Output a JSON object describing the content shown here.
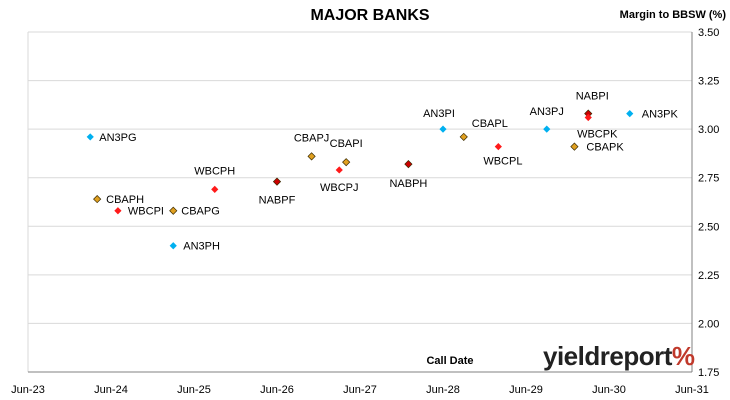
{
  "chart_data": {
    "type": "scatter",
    "title": "MAJOR BANKS",
    "ylabel": "Margin to BBSW (%)",
    "xlabel": "Call Date",
    "ylim": [
      1.75,
      3.5
    ],
    "yticks": [
      "1.75",
      "2.00",
      "2.25",
      "2.50",
      "2.75",
      "3.00",
      "3.25",
      "3.50"
    ],
    "xticks": [
      "Jun-23",
      "Jun-24",
      "Jun-25",
      "Jun-26",
      "Jun-27",
      "Jun-28",
      "Jun-29",
      "Jun-30",
      "Jun-31"
    ],
    "xlim": [
      "2023-06",
      "2031-06"
    ],
    "grid": "horizontal",
    "points": [
      {
        "label": "AN3PG",
        "x": "2024-03",
        "y": 2.96,
        "bank": "ANZ"
      },
      {
        "label": "CBAPH",
        "x": "2024-04",
        "y": 2.64,
        "bank": "CBA"
      },
      {
        "label": "WBCPI",
        "x": "2024-07",
        "y": 2.58,
        "bank": "WBC"
      },
      {
        "label": "CBAPG",
        "x": "2025-03",
        "y": 2.58,
        "bank": "CBA"
      },
      {
        "label": "AN3PH",
        "x": "2025-03",
        "y": 2.4,
        "bank": "ANZ"
      },
      {
        "label": "WBCPH",
        "x": "2025-09",
        "y": 2.69,
        "bank": "WBC"
      },
      {
        "label": "NABPF",
        "x": "2026-06",
        "y": 2.73,
        "bank": "NAB"
      },
      {
        "label": "CBAPJ",
        "x": "2026-11",
        "y": 2.86,
        "bank": "CBA"
      },
      {
        "label": "WBCPJ",
        "x": "2027-03",
        "y": 2.79,
        "bank": "WBC"
      },
      {
        "label": "CBAPI",
        "x": "2027-04",
        "y": 2.83,
        "bank": "CBA"
      },
      {
        "label": "NABPH",
        "x": "2028-01",
        "y": 2.82,
        "bank": "NAB"
      },
      {
        "label": "AN3PI",
        "x": "2028-06",
        "y": 3.0,
        "bank": "ANZ"
      },
      {
        "label": "CBAPL",
        "x": "2028-09",
        "y": 2.96,
        "bank": "CBA"
      },
      {
        "label": "WBCPL",
        "x": "2029-02",
        "y": 2.91,
        "bank": "WBC"
      },
      {
        "label": "AN3PJ",
        "x": "2029-09",
        "y": 3.0,
        "bank": "ANZ"
      },
      {
        "label": "CBAPK",
        "x": "2030-01",
        "y": 2.91,
        "bank": "CBA"
      },
      {
        "label": "NABPI",
        "x": "2030-03",
        "y": 3.08,
        "bank": "NAB"
      },
      {
        "label": "WBCPK",
        "x": "2030-03",
        "y": 3.06,
        "bank": "WBC"
      },
      {
        "label": "AN3PK",
        "x": "2030-09",
        "y": 3.08,
        "bank": "ANZ"
      }
    ]
  },
  "colors": {
    "ANZ": "#00b0f0",
    "CBA": "#e0a020",
    "WBC": "#ff1a1a",
    "NAB": "#cc0000",
    "grid": "#d9d9d9"
  },
  "brand": {
    "main": "yieldreport",
    "pct": "%"
  }
}
